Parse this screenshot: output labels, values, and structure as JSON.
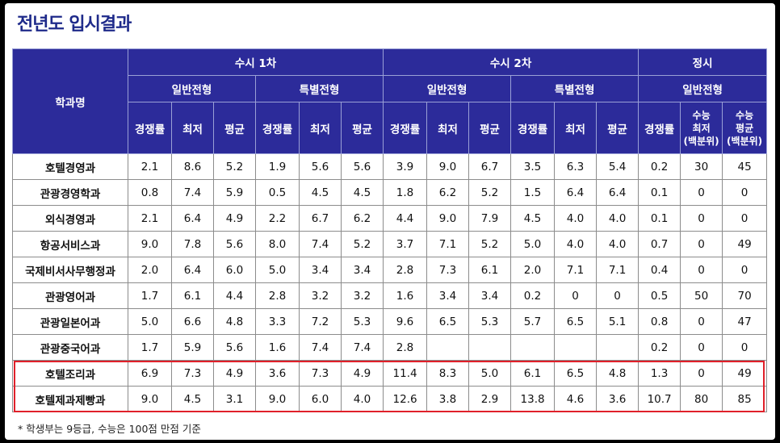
{
  "title": "전년도 입시결과",
  "header": {
    "dept": "학과명",
    "susi1": "수시 1차",
    "susi2": "수시 2차",
    "jeongsi": "정시",
    "general": "일반전형",
    "special": "특별전형",
    "rate": "경쟁률",
    "min": "최저",
    "avg": "평균",
    "sn_min_1": "수능",
    "sn_min_2": "최저",
    "sn_avg_1": "수능",
    "sn_avg_2": "평균",
    "pct": "(백분위)"
  },
  "rows": [
    {
      "name": "호텔경영과",
      "v": [
        "2.1",
        "8.6",
        "5.2",
        "1.9",
        "5.6",
        "5.6",
        "3.9",
        "9.0",
        "6.7",
        "3.5",
        "6.3",
        "5.4",
        "0.2",
        "30",
        "45"
      ]
    },
    {
      "name": "관광경영학과",
      "v": [
        "0.8",
        "7.4",
        "5.9",
        "0.5",
        "4.5",
        "4.5",
        "1.8",
        "6.2",
        "5.2",
        "1.5",
        "6.4",
        "6.4",
        "0.1",
        "0",
        "0"
      ]
    },
    {
      "name": "외식경영과",
      "v": [
        "2.1",
        "6.4",
        "4.9",
        "2.2",
        "6.7",
        "6.2",
        "4.4",
        "9.0",
        "7.9",
        "4.5",
        "4.0",
        "4.0",
        "0.1",
        "0",
        "0"
      ]
    },
    {
      "name": "항공서비스과",
      "v": [
        "9.0",
        "7.8",
        "5.6",
        "8.0",
        "7.4",
        "5.2",
        "3.7",
        "7.1",
        "5.2",
        "5.0",
        "4.0",
        "4.0",
        "0.7",
        "0",
        "49"
      ]
    },
    {
      "name": "국제비서사무행정과",
      "v": [
        "2.0",
        "6.4",
        "6.0",
        "5.0",
        "3.4",
        "3.4",
        "2.8",
        "7.3",
        "6.1",
        "2.0",
        "7.1",
        "7.1",
        "0.4",
        "0",
        "0"
      ]
    },
    {
      "name": "관광영어과",
      "v": [
        "1.7",
        "6.1",
        "4.4",
        "2.8",
        "3.2",
        "3.2",
        "1.6",
        "3.4",
        "3.4",
        "0.2",
        "0",
        "0",
        "0.5",
        "50",
        "70"
      ]
    },
    {
      "name": "관광일본어과",
      "v": [
        "5.0",
        "6.6",
        "4.8",
        "3.3",
        "7.2",
        "5.3",
        "9.6",
        "6.5",
        "5.3",
        "5.7",
        "6.5",
        "5.1",
        "0.8",
        "0",
        "47"
      ]
    },
    {
      "name": "관광중국어과",
      "v": [
        "1.7",
        "5.9",
        "5.6",
        "1.6",
        "7.4",
        "7.4",
        "2.8",
        "",
        "",
        "",
        "",
        "",
        "0.2",
        "0",
        "0"
      ]
    },
    {
      "name": "호텔조리과",
      "v": [
        "6.9",
        "7.3",
        "4.9",
        "3.6",
        "7.3",
        "4.9",
        "11.4",
        "8.3",
        "5.0",
        "6.1",
        "6.5",
        "4.8",
        "1.3",
        "0",
        "49"
      ]
    },
    {
      "name": "호텔제과제빵과",
      "v": [
        "9.0",
        "4.5",
        "3.1",
        "9.0",
        "6.0",
        "4.0",
        "12.6",
        "3.8",
        "2.9",
        "13.8",
        "4.6",
        "3.6",
        "10.7",
        "80",
        "85"
      ]
    }
  ],
  "footnote": "* 학생부는 9등급, 수능은 100점 만점 기준",
  "colors": {
    "header_bg": "#2c2b9a",
    "title": "#1e2a8a",
    "highlight": "#e0202a"
  }
}
